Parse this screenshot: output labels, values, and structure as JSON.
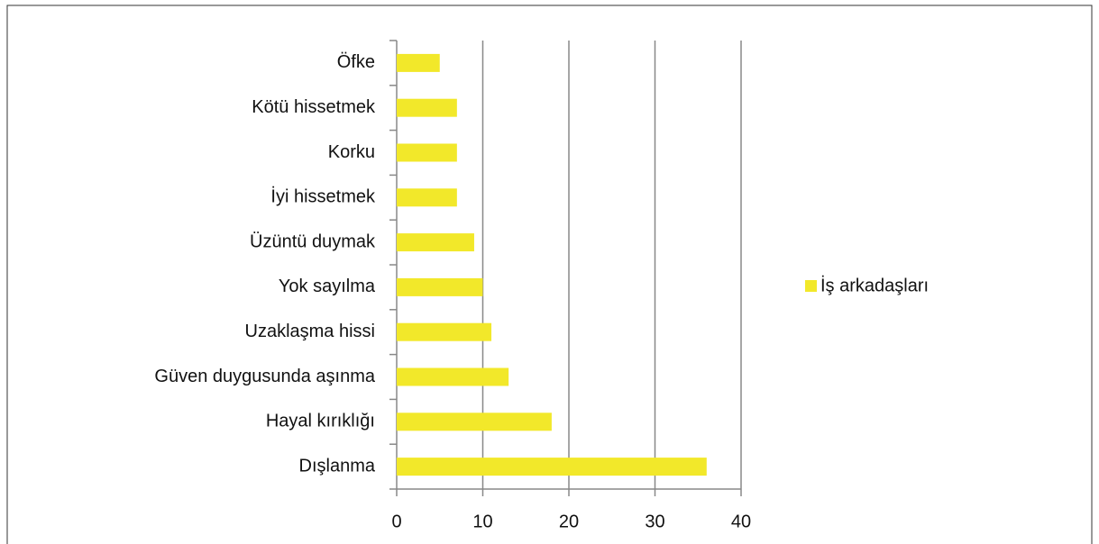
{
  "chart_data": {
    "type": "bar",
    "orientation": "horizontal",
    "categories": [
      "Öfke",
      "Kötü hissetmek",
      "Korku",
      "İyi hissetmek",
      "Üzüntü duymak",
      "Yok sayılma",
      "Uzaklaşma hissi",
      "Güven duygusunda aşınma",
      "Hayal kırıklığı",
      "Dışlanma"
    ],
    "series": [
      {
        "name": "İş arkadaşları",
        "color": "#f2e82a",
        "values": [
          5,
          7,
          7,
          7,
          9,
          10,
          11,
          13,
          18,
          36
        ]
      }
    ],
    "xlim": [
      0,
      40
    ],
    "xticks": [
      0,
      10,
      20,
      30,
      40
    ],
    "grid": true,
    "legend": "right"
  }
}
